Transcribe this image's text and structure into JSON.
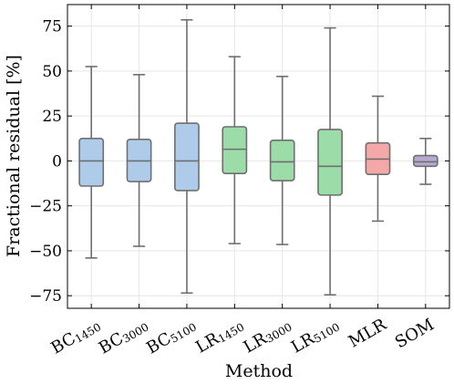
{
  "chart_data": {
    "type": "box",
    "xlabel": "Method",
    "ylabel": "Fractional residual [%]",
    "ylim": [
      -82,
      87
    ],
    "yticks": [
      -75,
      -50,
      -25,
      0,
      25,
      50,
      75
    ],
    "ytick_labels": [
      "−75",
      "−50",
      "−25",
      "0",
      "25",
      "50",
      "75"
    ],
    "grid": true,
    "categories": [
      {
        "main": "BC",
        "sub": "1450",
        "color": "#aecbea"
      },
      {
        "main": "BC",
        "sub": "3000",
        "color": "#aecbea"
      },
      {
        "main": "BC",
        "sub": "5100",
        "color": "#aecbea"
      },
      {
        "main": "LR",
        "sub": "1450",
        "color": "#9cdca8"
      },
      {
        "main": "LR",
        "sub": "3000",
        "color": "#9cdca8"
      },
      {
        "main": "LR",
        "sub": "5100",
        "color": "#9cdca8"
      },
      {
        "main": "MLR",
        "sub": "",
        "color": "#f4a8a8"
      },
      {
        "main": "SOM",
        "sub": "",
        "color": "#b8a9cf"
      }
    ],
    "boxes": [
      {
        "whisker_low": -54,
        "q1": -14,
        "median": 0,
        "q3": 12.5,
        "whisker_high": 52.5
      },
      {
        "whisker_low": -47.5,
        "q1": -11.5,
        "median": 0,
        "q3": 12,
        "whisker_high": 48
      },
      {
        "whisker_low": -73.5,
        "q1": -16.5,
        "median": 0,
        "q3": 21,
        "whisker_high": 78.5
      },
      {
        "whisker_low": -46,
        "q1": -7,
        "median": 6.5,
        "q3": 19,
        "whisker_high": 58
      },
      {
        "whisker_low": -46.5,
        "q1": -11,
        "median": -0.5,
        "q3": 11.5,
        "whisker_high": 47
      },
      {
        "whisker_low": -74.5,
        "q1": -19,
        "median": -3,
        "q3": 17.5,
        "whisker_high": 74
      },
      {
        "whisker_low": -33.5,
        "q1": -7.5,
        "median": 1,
        "q3": 10,
        "whisker_high": 36
      },
      {
        "whisker_low": -13,
        "q1": -3,
        "median": -0.5,
        "q3": 3,
        "whisker_high": 12.5
      }
    ]
  }
}
